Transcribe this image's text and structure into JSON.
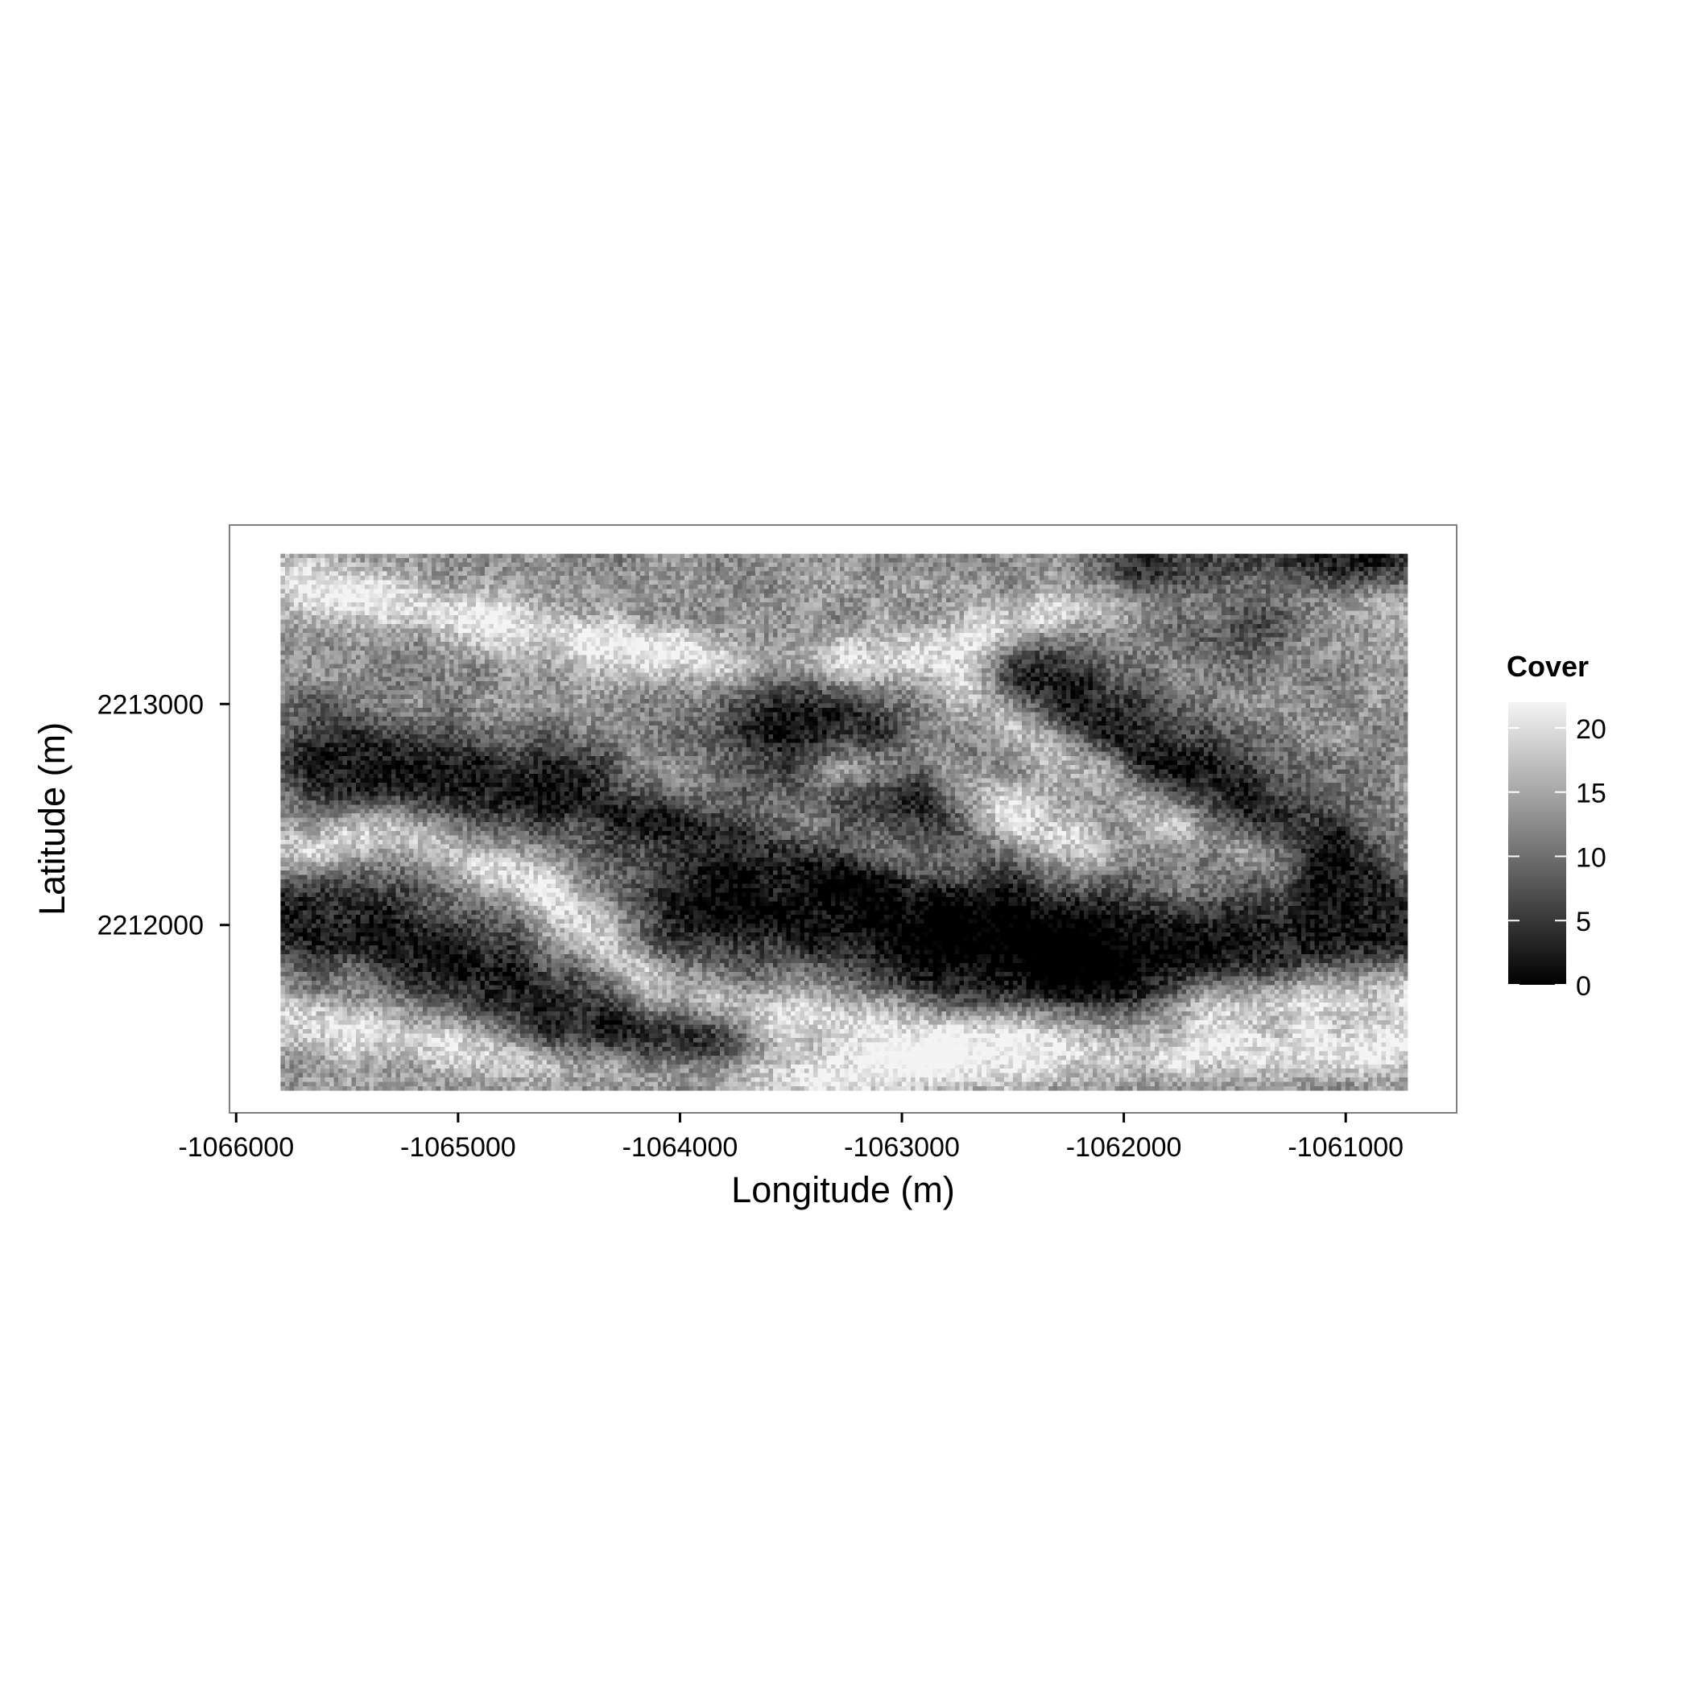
{
  "chart_data": {
    "type": "heatmap",
    "title": "",
    "xlabel": "Longitude (m)",
    "ylabel": "Latitude (m)",
    "xlim": [
      -1066030,
      -1060500
    ],
    "ylim": [
      2211150,
      2213810
    ],
    "data_extent": {
      "x": [
        -1065800,
        -1060720
      ],
      "y": [
        2211250,
        2213680
      ]
    },
    "x_ticks": [
      -1066000,
      -1065000,
      -1064000,
      -1063000,
      -1062000,
      -1061000
    ],
    "x_tick_labels": [
      "-1066000",
      "-1065000",
      "-1064000",
      "-1063000",
      "-1062000",
      "-1061000"
    ],
    "y_ticks": [
      2212000,
      2213000
    ],
    "y_tick_labels": [
      "2212000",
      "2213000"
    ],
    "grid": false,
    "colorbar": {
      "title": "Cover",
      "min": 0,
      "max": 22,
      "ticks": [
        0,
        5,
        10,
        15,
        20
      ],
      "tick_labels": [
        "0",
        "5",
        "10",
        "15",
        "20"
      ],
      "low_color": "#000000",
      "high_color": "#f4f4f4"
    },
    "legend_position": "right",
    "bright_bands": [
      [
        [
          -1065800,
          2212300
        ],
        [
          -1065300,
          2212450
        ],
        [
          -1064600,
          2212150
        ],
        [
          -1064100,
          2211700
        ],
        [
          -1063600,
          2211600
        ],
        [
          -1062900,
          2211500
        ],
        [
          -1062300,
          2211550
        ],
        [
          -1061500,
          2211650
        ],
        [
          -1060720,
          2211700
        ]
      ],
      [
        [
          -1065800,
          2211550
        ],
        [
          -1065300,
          2211500
        ],
        [
          -1064600,
          2211380
        ],
        [
          -1063800,
          2211300
        ],
        [
          -1063000,
          2211350
        ],
        [
          -1062200,
          2211400
        ],
        [
          -1061400,
          2211420
        ],
        [
          -1060720,
          2211450
        ]
      ],
      [
        [
          -1065800,
          2213550
        ],
        [
          -1065000,
          2213400
        ],
        [
          -1064200,
          2213250
        ],
        [
          -1063600,
          2213150
        ],
        [
          -1062800,
          2213250
        ],
        [
          -1062200,
          2213450
        ],
        [
          -1061500,
          2213500
        ],
        [
          -1060720,
          2213450
        ]
      ],
      [
        [
          -1063300,
          2212700
        ],
        [
          -1062900,
          2212750
        ],
        [
          -1062500,
          2212500
        ],
        [
          -1062200,
          2212350
        ]
      ],
      [
        [
          -1062700,
          2213050
        ],
        [
          -1062300,
          2212800
        ],
        [
          -1061800,
          2212500
        ],
        [
          -1061300,
          2212300
        ]
      ],
      [
        [
          -1064200,
          2212700
        ],
        [
          -1063800,
          2212550
        ],
        [
          -1063300,
          2212400
        ],
        [
          -1062800,
          2212250
        ]
      ]
    ],
    "dark_bands": [
      [
        [
          -1065800,
          2212050
        ],
        [
          -1065400,
          2212000
        ],
        [
          -1064900,
          2211800
        ],
        [
          -1064500,
          2211550
        ],
        [
          -1063900,
          2211450
        ]
      ],
      [
        [
          -1065600,
          2212750
        ],
        [
          -1065000,
          2212650
        ],
        [
          -1064300,
          2212600
        ],
        [
          -1063600,
          2212450
        ],
        [
          -1062900,
          2212200
        ],
        [
          -1062200,
          2211950
        ],
        [
          -1061500,
          2211900
        ],
        [
          -1060800,
          2212000
        ]
      ],
      [
        [
          -1064000,
          2212100
        ],
        [
          -1063300,
          2212000
        ],
        [
          -1062600,
          2211800
        ],
        [
          -1062000,
          2211650
        ]
      ],
      [
        [
          -1062400,
          2213100
        ],
        [
          -1062000,
          2212850
        ],
        [
          -1061600,
          2212600
        ],
        [
          -1061100,
          2212300
        ]
      ],
      [
        [
          -1063600,
          2213000
        ],
        [
          -1063200,
          2212850
        ],
        [
          -1062900,
          2212650
        ]
      ],
      [
        [
          -1061900,
          2213600
        ],
        [
          -1061400,
          2213500
        ],
        [
          -1060900,
          2213650
        ]
      ]
    ]
  }
}
